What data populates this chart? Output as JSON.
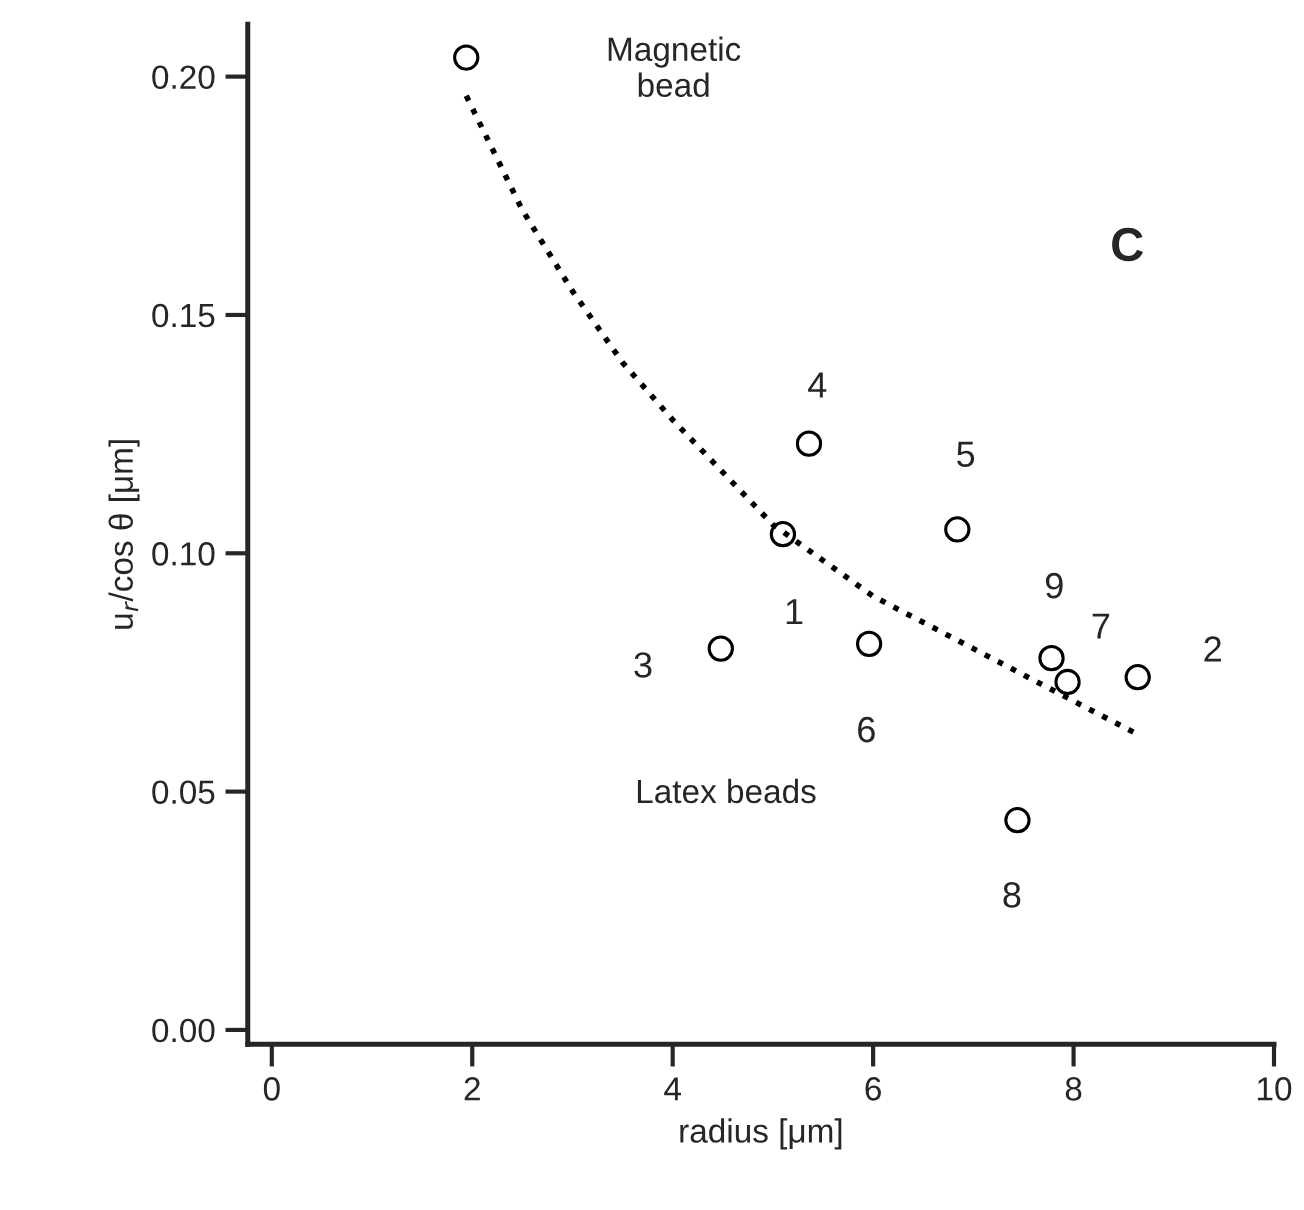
{
  "chart_data": {
    "type": "scatter",
    "xlabel": "radius [μm]",
    "ylabel": "u$_{r}$/cos θ [μm]",
    "xlim": [
      -0.24,
      10
    ],
    "ylim": [
      -0.003,
      0.211
    ],
    "xticks": [
      0,
      2,
      4,
      6,
      8,
      10
    ],
    "yticks": [
      {
        "value": 0,
        "label": "0.00"
      },
      {
        "value": 0.05,
        "label": "0.05"
      },
      {
        "value": 0.1,
        "label": "0.10"
      },
      {
        "value": 0.15,
        "label": "0.15"
      },
      {
        "value": 0.2,
        "label": "0.20"
      }
    ],
    "grid": false,
    "legend": false,
    "series": [
      {
        "color": "#000000",
        "marker": "circle",
        "x": [
          1.94,
          5.1,
          8.64,
          4.48,
          5.36,
          6.84,
          5.96,
          7.94,
          7.44,
          7.78
        ],
        "values": [
          0.204,
          0.104,
          0.074,
          0.08,
          0.123,
          0.105,
          0.081,
          0.073,
          0.044,
          0.078
        ]
      },
      {
        "type": "line",
        "color": "#000000",
        "line_style": "dotted",
        "marker": "none",
        "x": [
          1.94,
          2.5,
          3,
          3.5,
          4,
          5,
          6,
          7,
          8,
          8.64
        ],
        "values": [
          0.196,
          0.172,
          0.155,
          0.14,
          0.128,
          0.106,
          0.091,
          0.08,
          0.069,
          0.062
        ]
      }
    ],
    "annotations": [
      "Magnetic\nbead",
      "Latex beads",
      "C",
      {
        "text": "1",
        "x": 5.1,
        "y": 0.104
      },
      {
        "text": "2",
        "x": 8.64,
        "y": 0.074
      },
      {
        "text": "3",
        "x": 4.48,
        "y": 0.08
      },
      {
        "text": "4",
        "x": 5.36,
        "y": 0.123
      },
      {
        "text": "5",
        "x": 6.84,
        "y": 0.105
      },
      {
        "text": "6",
        "x": 5.96,
        "y": 0.081
      },
      {
        "text": "7",
        "x": 7.94,
        "y": 0.073
      },
      {
        "text": "8",
        "x": 7.44,
        "y": 0.044
      },
      {
        "text": "9",
        "x": 7.78,
        "y": 0.078
      }
    ]
  }
}
